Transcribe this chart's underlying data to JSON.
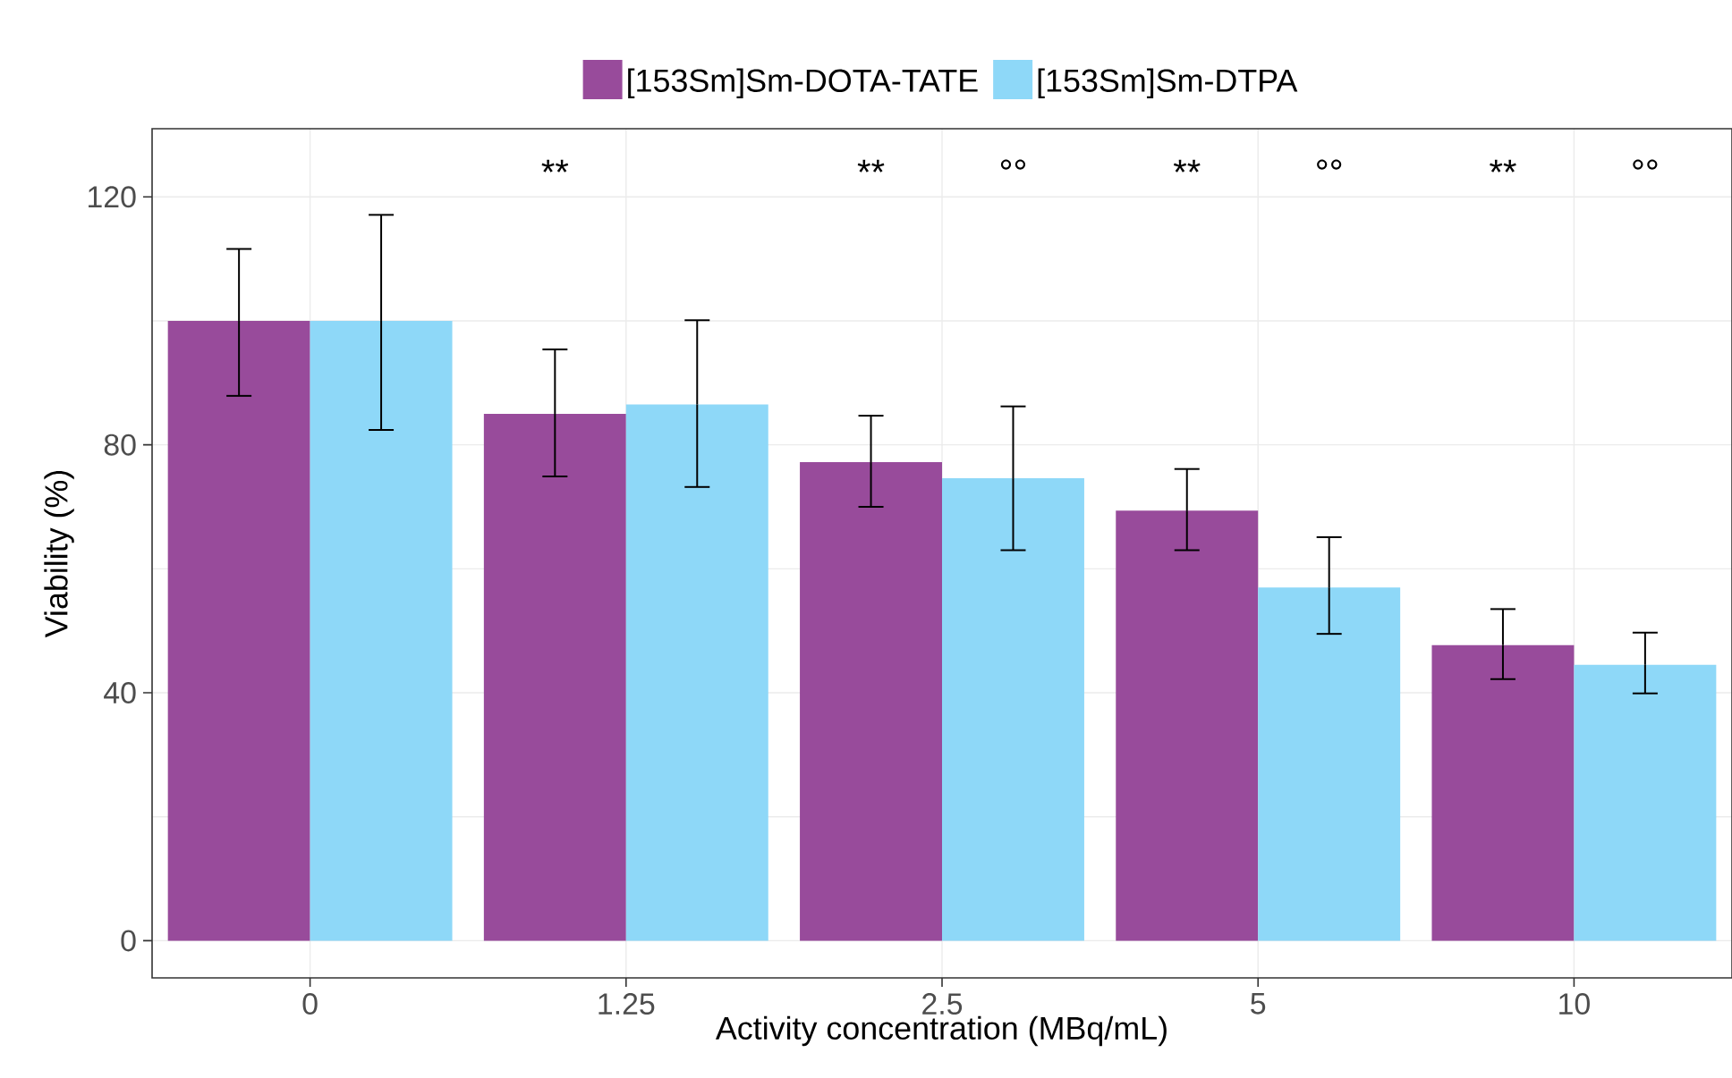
{
  "chart_data": {
    "type": "bar",
    "xlabel": "Activity concentration (MBq/mL)",
    "ylabel": "Viability (%)",
    "categories": [
      "0",
      "1.25",
      "2.5",
      "5",
      "10"
    ],
    "series": [
      {
        "name": "[153Sm]Sm-DOTA-TATE",
        "color": "#984b9b",
        "values": [
          100,
          85.0,
          77.2,
          69.4,
          47.7
        ],
        "errors": [
          [
            87.9,
            111.6
          ],
          [
            74.9,
            95.4
          ],
          [
            70.0,
            84.7
          ],
          [
            63.0,
            76.1
          ],
          [
            42.2,
            53.5
          ]
        ]
      },
      {
        "name": "[153Sm]Sm-DTPA",
        "color": "#8ed8f8",
        "values": [
          100,
          86.5,
          74.6,
          57.0,
          44.5
        ],
        "errors": [
          [
            82.4,
            117.1
          ],
          [
            73.2,
            100.1
          ],
          [
            63.0,
            86.2
          ],
          [
            49.5,
            65.1
          ],
          [
            39.9,
            49.7
          ]
        ]
      }
    ],
    "ylim": [
      -6,
      131
    ],
    "yticks": [
      0,
      40,
      80,
      120
    ],
    "grid": true,
    "legend": "top",
    "annotations": [
      "**",
      "**",
      "°°",
      "**",
      "°°",
      "**",
      "°°"
    ]
  }
}
